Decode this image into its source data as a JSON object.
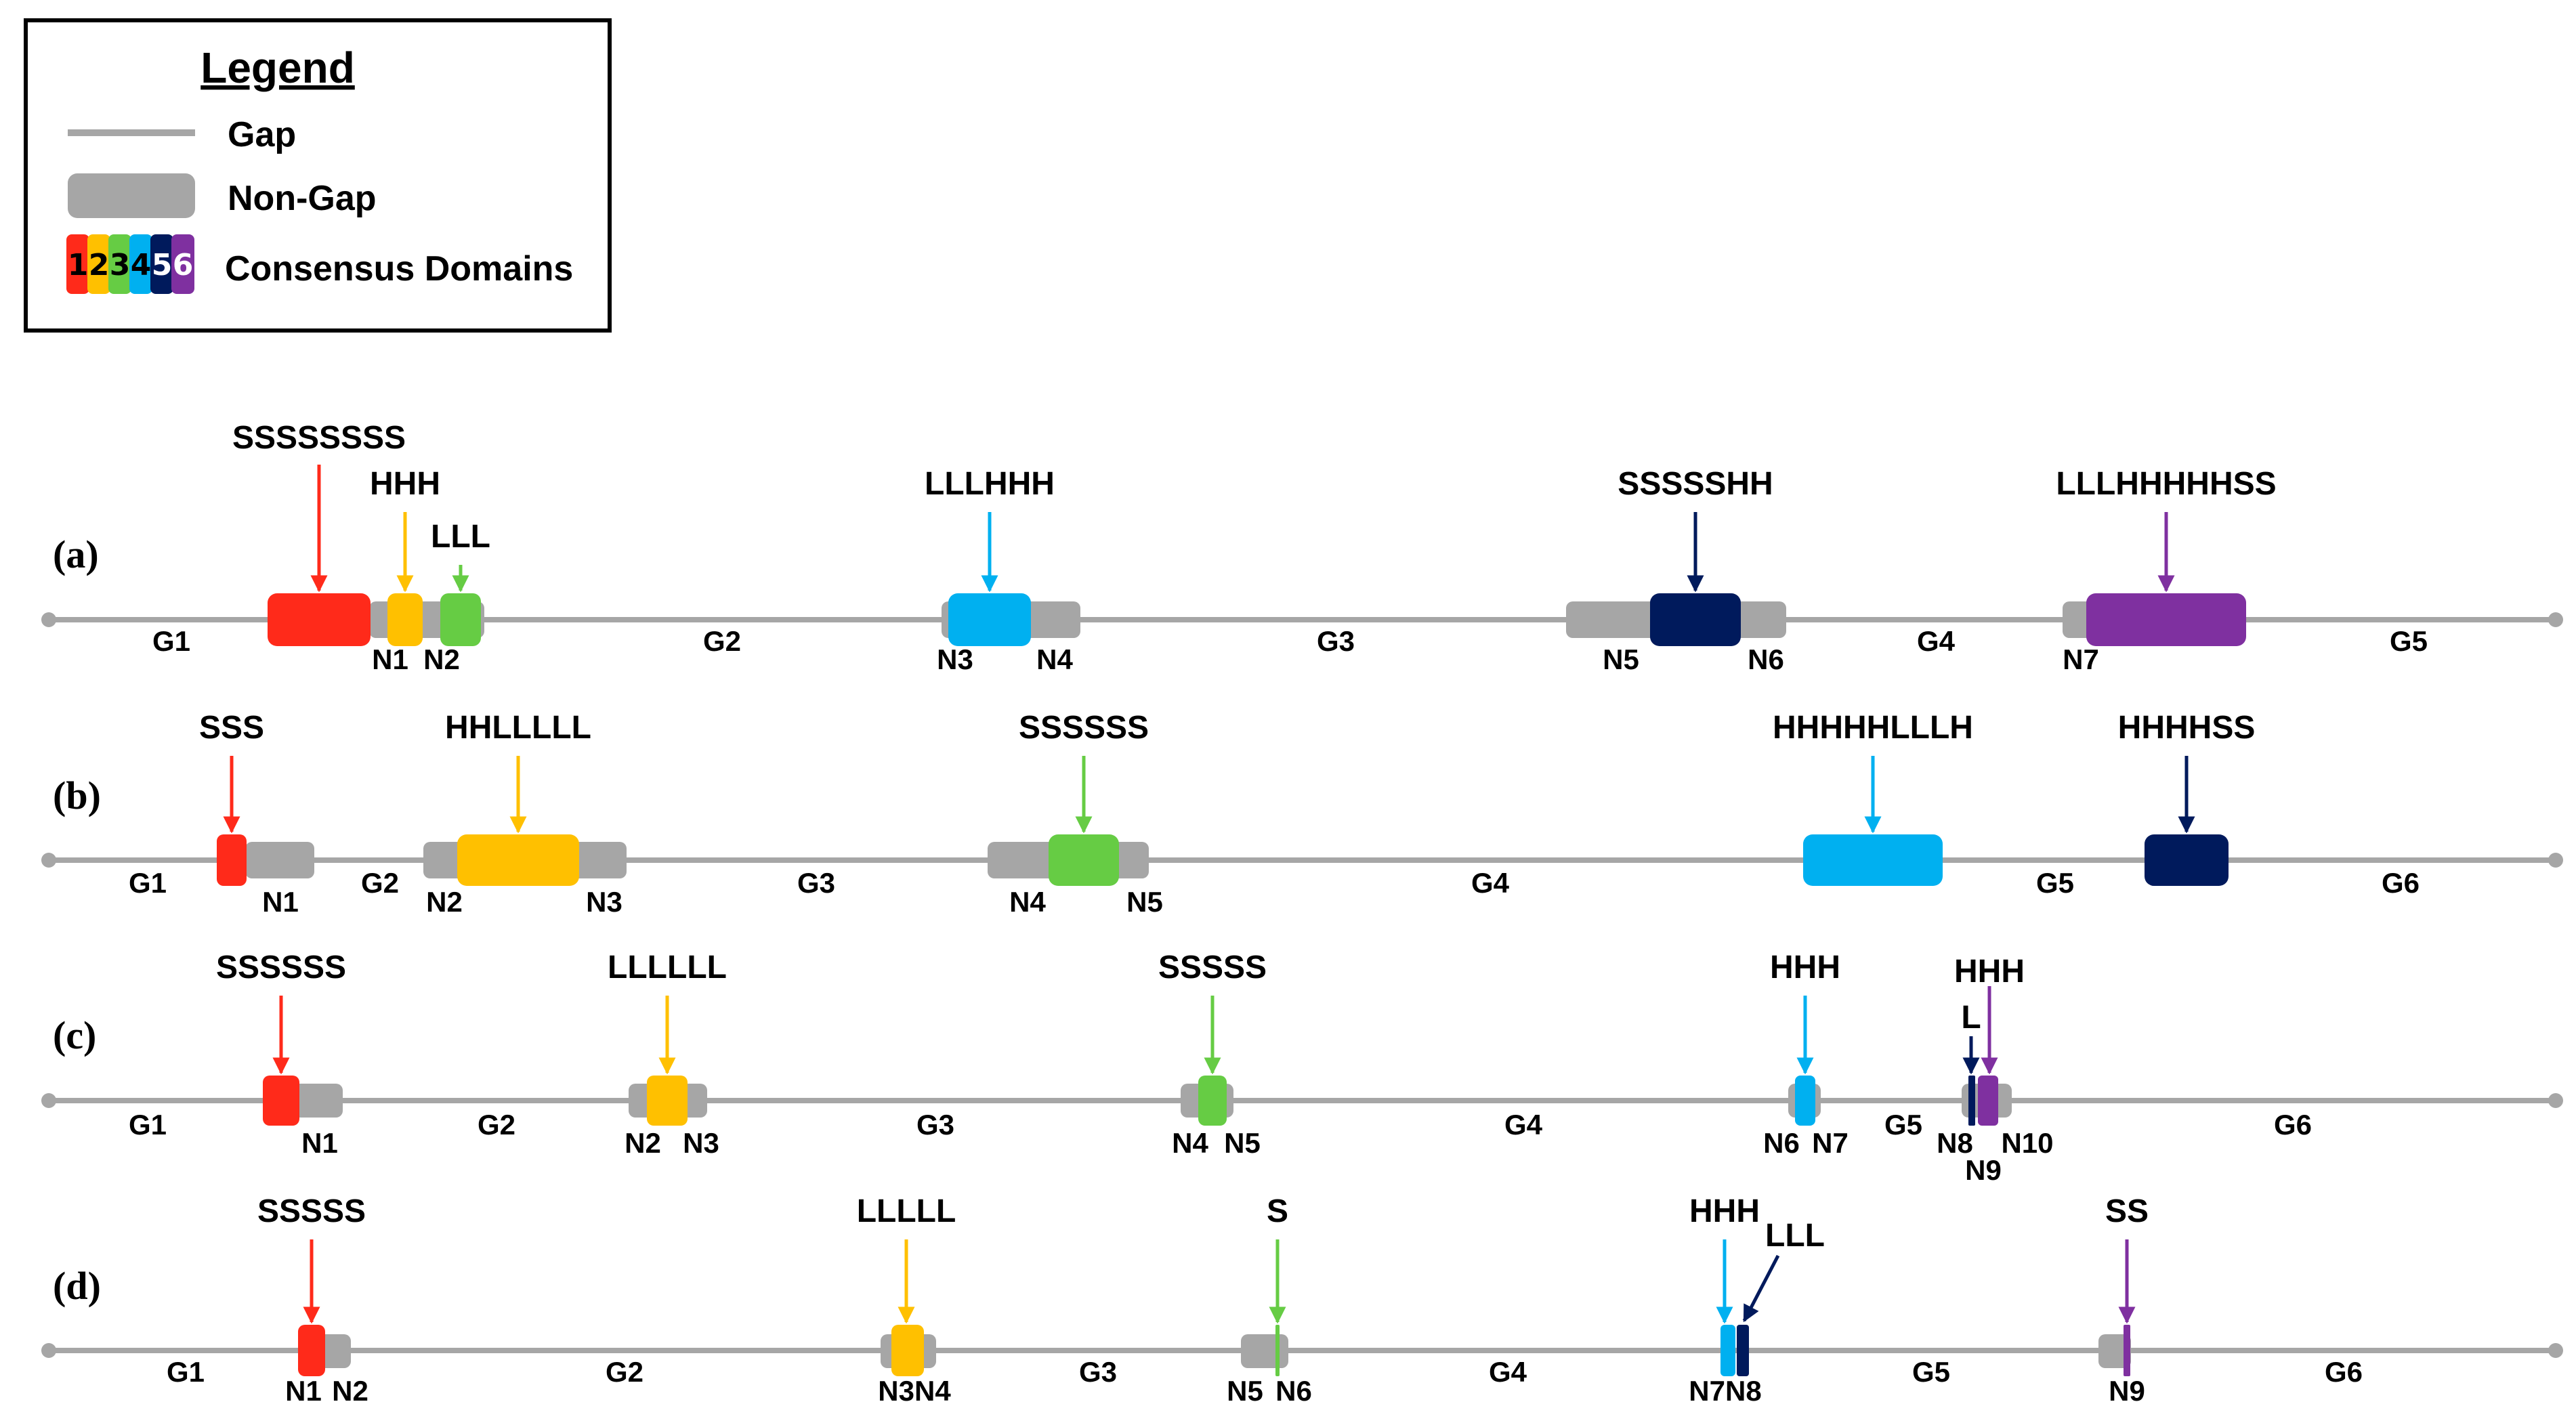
{
  "legend": {
    "title": "Legend",
    "gap_label": "Gap",
    "nongap_label": "Non-Gap",
    "domains_label": "Consensus Domains",
    "domain_digits": [
      "1",
      "2",
      "3",
      "4",
      "5",
      "6"
    ]
  },
  "colors": {
    "line": "#A6A6A6",
    "nongap": "#A6A6A6",
    "d1": "#FF2A1A",
    "d2": "#FFC000",
    "d3": "#66CC44",
    "d4": "#00B0F0",
    "d5": "#001A5C",
    "d6": "#7F30A0"
  },
  "rows": [
    {
      "label": "(a)",
      "gaps": [
        "G1",
        "G2",
        "G3",
        "G4",
        "G5"
      ],
      "nongaps": [
        "N1",
        "N2",
        "N3",
        "N4",
        "N5",
        "N6",
        "N7"
      ],
      "domains": [
        {
          "domain": 1,
          "motif": "SSSSSSSS"
        },
        {
          "domain": 2,
          "motif": "HHH"
        },
        {
          "domain": 3,
          "motif": "LLL"
        },
        {
          "domain": 4,
          "motif": "LLLHHH"
        },
        {
          "domain": 5,
          "motif": "SSSSSHH"
        },
        {
          "domain": 6,
          "motif": "LLLHHHHHSS"
        }
      ]
    },
    {
      "label": "(b)",
      "gaps": [
        "G1",
        "G2",
        "G3",
        "G4",
        "G5",
        "G6"
      ],
      "nongaps": [
        "N1",
        "N2",
        "N3",
        "N4",
        "N5"
      ],
      "domains": [
        {
          "domain": 1,
          "motif": "SSS"
        },
        {
          "domain": 2,
          "motif": "HHLLLLL"
        },
        {
          "domain": 3,
          "motif": "SSSSSS"
        },
        {
          "domain": 4,
          "motif": "HHHHHLLLH"
        },
        {
          "domain": 5,
          "motif": "HHHHSS"
        }
      ]
    },
    {
      "label": "(c)",
      "gaps": [
        "G1",
        "G2",
        "G3",
        "G4",
        "G5",
        "G6"
      ],
      "nongaps": [
        "N1",
        "N2",
        "N3",
        "N4",
        "N5",
        "N6",
        "N7",
        "N8",
        "N9",
        "N10"
      ],
      "domains": [
        {
          "domain": 1,
          "motif": "SSSSSS"
        },
        {
          "domain": 2,
          "motif": "LLLLLL"
        },
        {
          "domain": 3,
          "motif": "SSSSS"
        },
        {
          "domain": 4,
          "motif": "HHH"
        },
        {
          "domain": 5,
          "motif": "L"
        },
        {
          "domain": 6,
          "motif": "HHH"
        }
      ]
    },
    {
      "label": "(d)",
      "gaps": [
        "G1",
        "G2",
        "G3",
        "G4",
        "G5",
        "G6"
      ],
      "nongaps": [
        "N1",
        "N2",
        "N3N4",
        "N5",
        "N6",
        "N7N8",
        "N9"
      ],
      "domains": [
        {
          "domain": 1,
          "motif": "SSSSS"
        },
        {
          "domain": 2,
          "motif": "LLLLL"
        },
        {
          "domain": 3,
          "motif": "S"
        },
        {
          "domain": 4,
          "motif": "HHH"
        },
        {
          "domain": 5,
          "motif": "LLL"
        },
        {
          "domain": 6,
          "motif": "SS"
        }
      ]
    }
  ]
}
